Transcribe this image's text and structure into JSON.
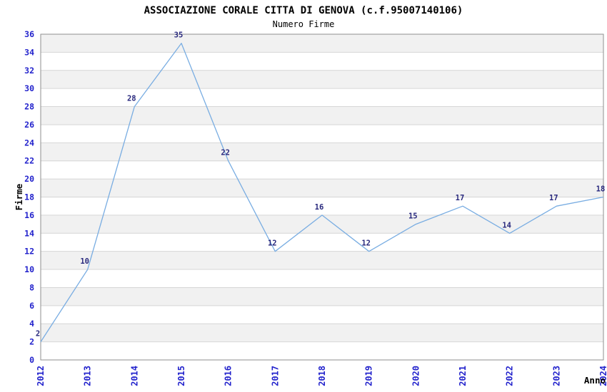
{
  "chart_data": {
    "type": "line",
    "title": "ASSOCIAZIONE CORALE CITTA DI GENOVA (c.f.95007140106)",
    "subtitle": "Numero Firme",
    "xlabel": "Anno",
    "ylabel": "Firme",
    "categories": [
      "2012",
      "2013",
      "2014",
      "2015",
      "2016",
      "2017",
      "2018",
      "2019",
      "2020",
      "2021",
      "2022",
      "2023",
      "2024"
    ],
    "values": [
      2,
      10,
      28,
      35,
      22,
      12,
      16,
      12,
      15,
      17,
      14,
      17,
      18
    ],
    "ylim": [
      0,
      36
    ],
    "ytick_step": 2,
    "grid": true,
    "legend_position": "none",
    "colors": {
      "line": "#79ade2",
      "value_labels": "#28287d",
      "tick_labels": "#2222cc",
      "axis_titles": "#000000",
      "band": "#f1f1f1",
      "gridline": "#d6d6d6",
      "plot_border": "#8f8f8f",
      "background": "#ffffff"
    }
  }
}
